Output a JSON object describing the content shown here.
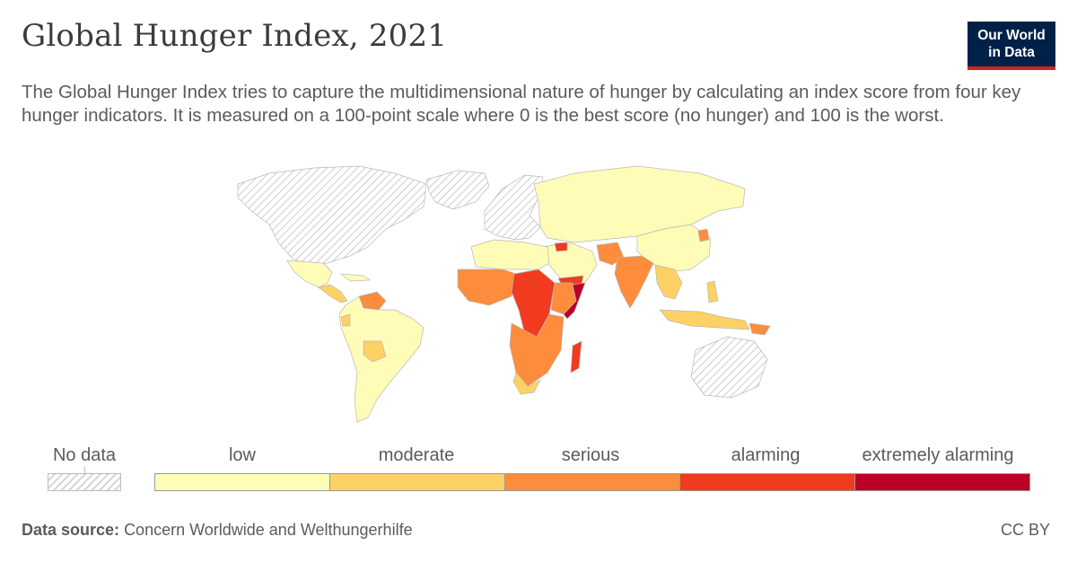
{
  "header": {
    "title": "Global Hunger Index, 2021",
    "subtitle": "The Global Hunger Index tries to capture the multidimensional nature of hunger by calculating an index score from four key hunger indicators. It is measured on a 100-point scale where 0 is the best score (no hunger) and 100 is the worst."
  },
  "logo": {
    "line1": "Our World",
    "line2": "in Data"
  },
  "legend": {
    "no_data_label": "No data",
    "bins": [
      {
        "label": "low",
        "color": "#fffcb8"
      },
      {
        "label": "moderate",
        "color": "#fed165"
      },
      {
        "label": "serious",
        "color": "#fd8c3c"
      },
      {
        "label": "alarming",
        "color": "#f03b20"
      },
      {
        "label": "extremely alarming",
        "color": "#bd0026"
      }
    ]
  },
  "colors": {
    "no_data": "#d2d2d2",
    "low": "#fffcb8",
    "moderate": "#fed165",
    "serious": "#fd8c3c",
    "alarming": "#f03b20",
    "extremely_alarming": "#bd0026",
    "border": "#b8b8b8"
  },
  "footer": {
    "source_label": "Data source:",
    "source_text": "Concern Worldwide and Welthungerhilfe",
    "license": "CC BY"
  }
}
